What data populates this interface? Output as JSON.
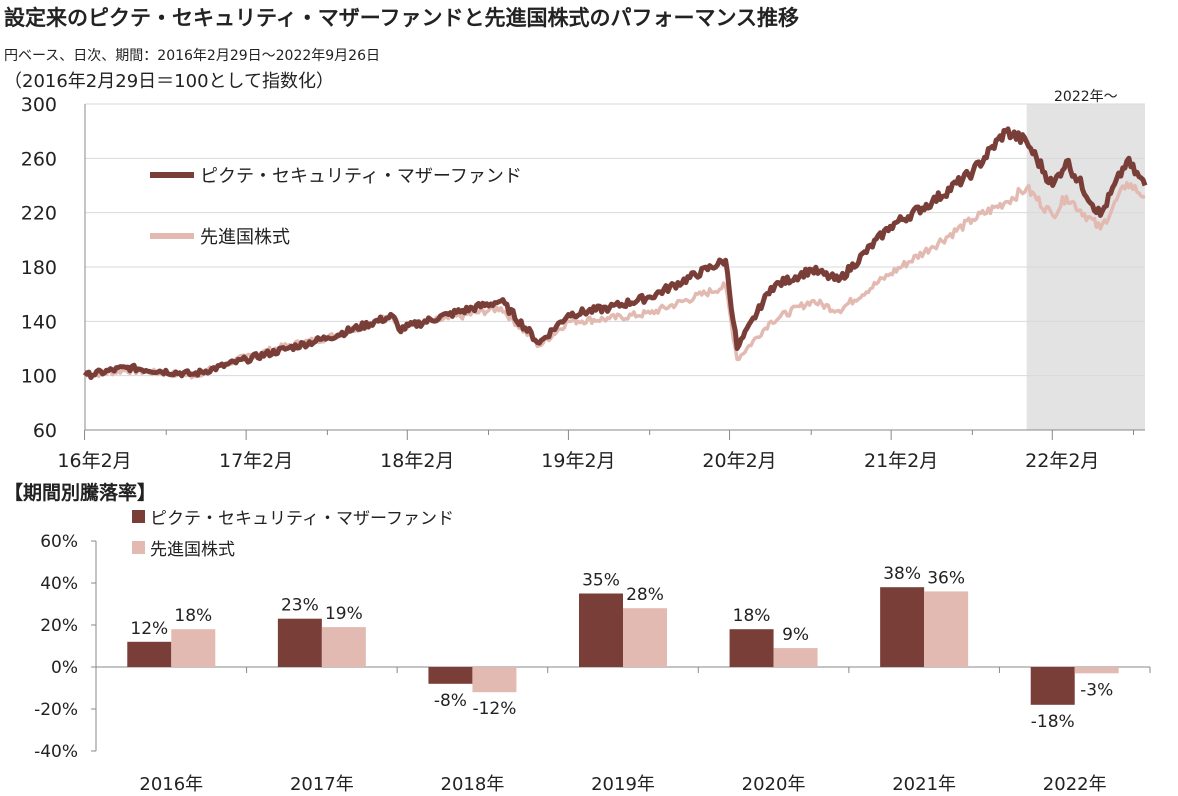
{
  "title": "設定来のピクテ・セキュリティ・マザーファンドと先進国株式のパフォーマンス推移",
  "subtitle": "円ベース、日次、期間：2016年2月29日～2022年9月26日",
  "index_note": "（2016年2月29日＝100として指数化）",
  "highlight_label": "2022年～",
  "bar_section_title": "【期間別騰落率】",
  "colors": {
    "fund": "#7a3e38",
    "benchmark": "#e2bab2",
    "shade": "#e3e3e3"
  },
  "chart_data": [
    {
      "type": "line",
      "ylim": [
        60,
        300
      ],
      "yticks": [
        60,
        100,
        140,
        180,
        220,
        260,
        300
      ],
      "xlim": [
        "2016-02-29",
        "2022-09-26"
      ],
      "xtick_labels": [
        "16年2月",
        "17年2月",
        "18年2月",
        "19年2月",
        "20年2月",
        "21年2月",
        "22年2月"
      ],
      "highlight_range": [
        "2022-01-01",
        "2022-09-26"
      ],
      "grid": true,
      "legend_position": "top-left",
      "series": [
        {
          "name": "ピクテ・セキュリティ・マザーファンド",
          "x": [
            "2016-02-29",
            "2016-06-01",
            "2016-11-01",
            "2017-02-28",
            "2017-06-01",
            "2017-09-01",
            "2018-01-26",
            "2018-02-09",
            "2018-06-01",
            "2018-09-28",
            "2018-12-24",
            "2019-02-28",
            "2019-06-01",
            "2019-09-01",
            "2020-02-19",
            "2020-03-16",
            "2020-06-01",
            "2020-09-01",
            "2020-11-01",
            "2021-02-26",
            "2021-06-01",
            "2021-09-01",
            "2021-11-15",
            "2022-01-01",
            "2022-03-01",
            "2022-04-01",
            "2022-06-17",
            "2022-08-16",
            "2022-09-26"
          ],
          "y": [
            100,
            106,
            101,
            112,
            120,
            128,
            144,
            134,
            145,
            155,
            124,
            145,
            150,
            158,
            185,
            120,
            165,
            178,
            170,
            210,
            228,
            250,
            280,
            272,
            240,
            258,
            218,
            258,
            240
          ]
        },
        {
          "name": "先進国株式",
          "x": [
            "2016-02-29",
            "2016-06-01",
            "2016-11-01",
            "2017-02-28",
            "2017-06-01",
            "2017-09-01",
            "2018-01-26",
            "2018-02-09",
            "2018-06-01",
            "2018-09-28",
            "2018-12-24",
            "2019-02-28",
            "2019-06-01",
            "2019-09-01",
            "2020-02-19",
            "2020-03-16",
            "2020-06-01",
            "2020-09-01",
            "2020-11-01",
            "2021-02-26",
            "2021-06-01",
            "2021-09-01",
            "2021-11-15",
            "2022-01-01",
            "2022-03-01",
            "2022-04-01",
            "2022-06-17",
            "2022-08-16",
            "2022-09-26"
          ],
          "y": [
            100,
            104,
            100,
            114,
            122,
            128,
            144,
            136,
            142,
            150,
            122,
            140,
            142,
            146,
            166,
            112,
            140,
            155,
            148,
            175,
            195,
            215,
            228,
            238,
            218,
            232,
            208,
            242,
            232
          ]
        }
      ]
    },
    {
      "type": "bar",
      "categories": [
        "2016年",
        "2017年",
        "2018年",
        "2019年",
        "2020年",
        "2021年",
        "2022年"
      ],
      "ylim": [
        -40,
        60
      ],
      "yticks": [
        -40,
        -20,
        0,
        20,
        40,
        60
      ],
      "ytick_labels": [
        "-40%",
        "-20%",
        "0%",
        "20%",
        "40%",
        "60%"
      ],
      "legend_position": "top-left",
      "series": [
        {
          "name": "ピクテ・セキュリティ・マザーファンド",
          "values": [
            12,
            23,
            -8,
            35,
            18,
            38,
            -18
          ],
          "labels": [
            "12%",
            "23%",
            "-8%",
            "35%",
            "18%",
            "38%",
            "-18%"
          ]
        },
        {
          "name": "先進国株式",
          "values": [
            18,
            19,
            -12,
            28,
            9,
            36,
            -3
          ],
          "labels": [
            "18%",
            "19%",
            "-12%",
            "28%",
            "9%",
            "36%",
            "-3%"
          ]
        }
      ]
    }
  ]
}
